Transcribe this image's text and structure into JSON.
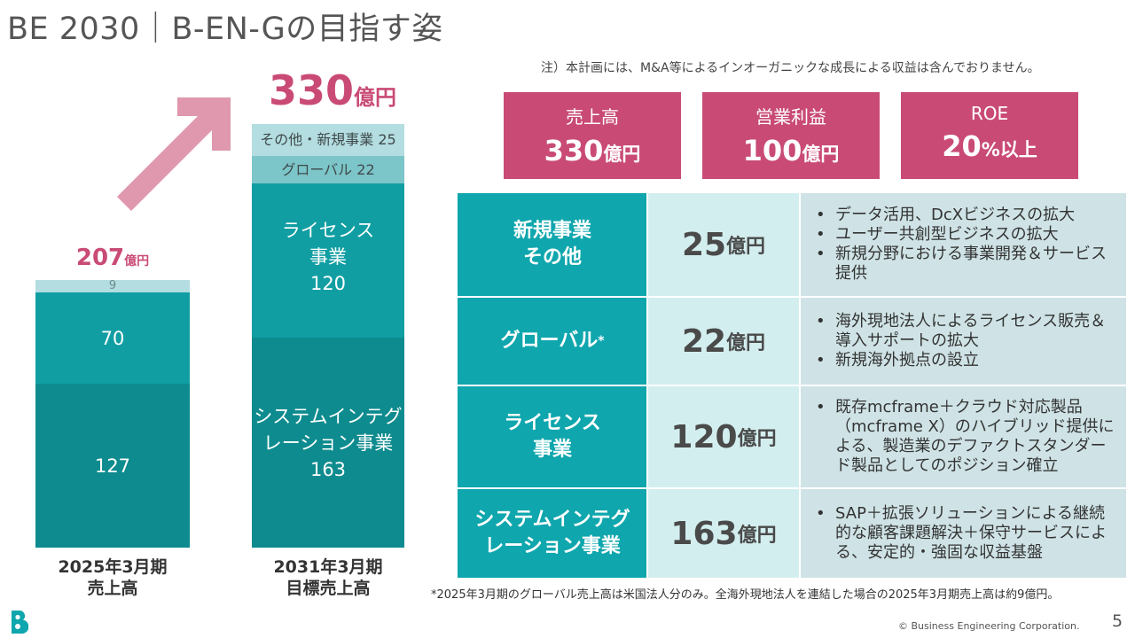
{
  "title": "BE 2030｜B-EN-Gの目指す姿",
  "note_top": "注）本計画には、M&A等によるインオーガニックな成長による収益は含んでおりません。",
  "chart_data": {
    "type": "bar",
    "categories": [
      "2025年3月期 売上高",
      "2031年3月期 目標売上高"
    ],
    "series": [
      {
        "name": "システムインテグレーション事業",
        "values": [
          127,
          163
        ]
      },
      {
        "name": "ライセンス事業",
        "values": [
          70,
          120
        ]
      },
      {
        "name": "グローバル",
        "values": [
          9,
          22
        ]
      },
      {
        "name": "その他・新規事業",
        "values": [
          null,
          25
        ]
      }
    ],
    "totals": [
      207,
      330
    ],
    "unit": "億円",
    "colors": {
      "si": "#0e8b8e",
      "license": "#109ea3",
      "global": "#7cc5c9",
      "other": "#b3dde0",
      "arrow": "#df98ad",
      "total": "#c94b75"
    }
  },
  "chart_labels": {
    "total_207": "207",
    "total_330": "330",
    "unit": "億円",
    "bar1_global": "9",
    "bar1_license": "70",
    "bar1_si": "127",
    "bar2_other": "その他・新規事業 25",
    "bar2_global": "グローバル 22",
    "bar2_license_l1": "ライセンス",
    "bar2_license_l2": "事業",
    "bar2_license_l3": "120",
    "bar2_si_l1": "システムインテグ",
    "bar2_si_l2": "レーション事業",
    "bar2_si_l3": "163",
    "x1_l1": "2025年3月期",
    "x1_l2": "売上高",
    "x2_l1": "2031年3月期",
    "x2_l2": "目標売上高"
  },
  "kpis": [
    {
      "label": "売上高",
      "value": "330",
      "unit": "億円"
    },
    {
      "label": "営業利益",
      "value": "100",
      "unit": "億円"
    },
    {
      "label": "ROE",
      "value": "20",
      "unit": "%以上"
    }
  ],
  "table": [
    {
      "cat_l1": "新規事業",
      "cat_l2": "その他",
      "value": "25",
      "unit": "億円",
      "bullets": [
        "データ活用、DcXビジネスの拡大",
        "ユーザー共創型ビジネスの拡大",
        "新規分野における事業開発＆サービス提供"
      ]
    },
    {
      "cat_l1": "グローバル",
      "cat_sup": "*",
      "value": "22",
      "unit": "億円",
      "bullets": [
        "海外現地法人によるライセンス販売＆導入サポートの拡大",
        "新規海外拠点の設立"
      ]
    },
    {
      "cat_l1": "ライセンス",
      "cat_l2": "事業",
      "value": "120",
      "unit": "億円",
      "bullets": [
        "既存mcframe＋クラウド対応製品（mcframe X）のハイブリッド提供による、製造業のデファクトスタンダード製品としてのポジション確立"
      ]
    },
    {
      "cat_l1": "システムインテグ",
      "cat_l2": "レーション事業",
      "value": "163",
      "unit": "億円",
      "bullets": [
        "SAP＋拡張ソリューションによる継続的な顧客課題解決＋保守サービスによる、安定的・強固な収益基盤"
      ]
    }
  ],
  "footnote": "*2025年3月期のグローバル売上高は米国法人分のみ。全海外現地法人を連結した場合の2025年3月期売上高は約9億円。",
  "copyright": "© Business Engineering Corporation.",
  "page_number": "5",
  "icons": {
    "logo": "b-logo-icon",
    "arrow": "growth-arrow-icon"
  }
}
